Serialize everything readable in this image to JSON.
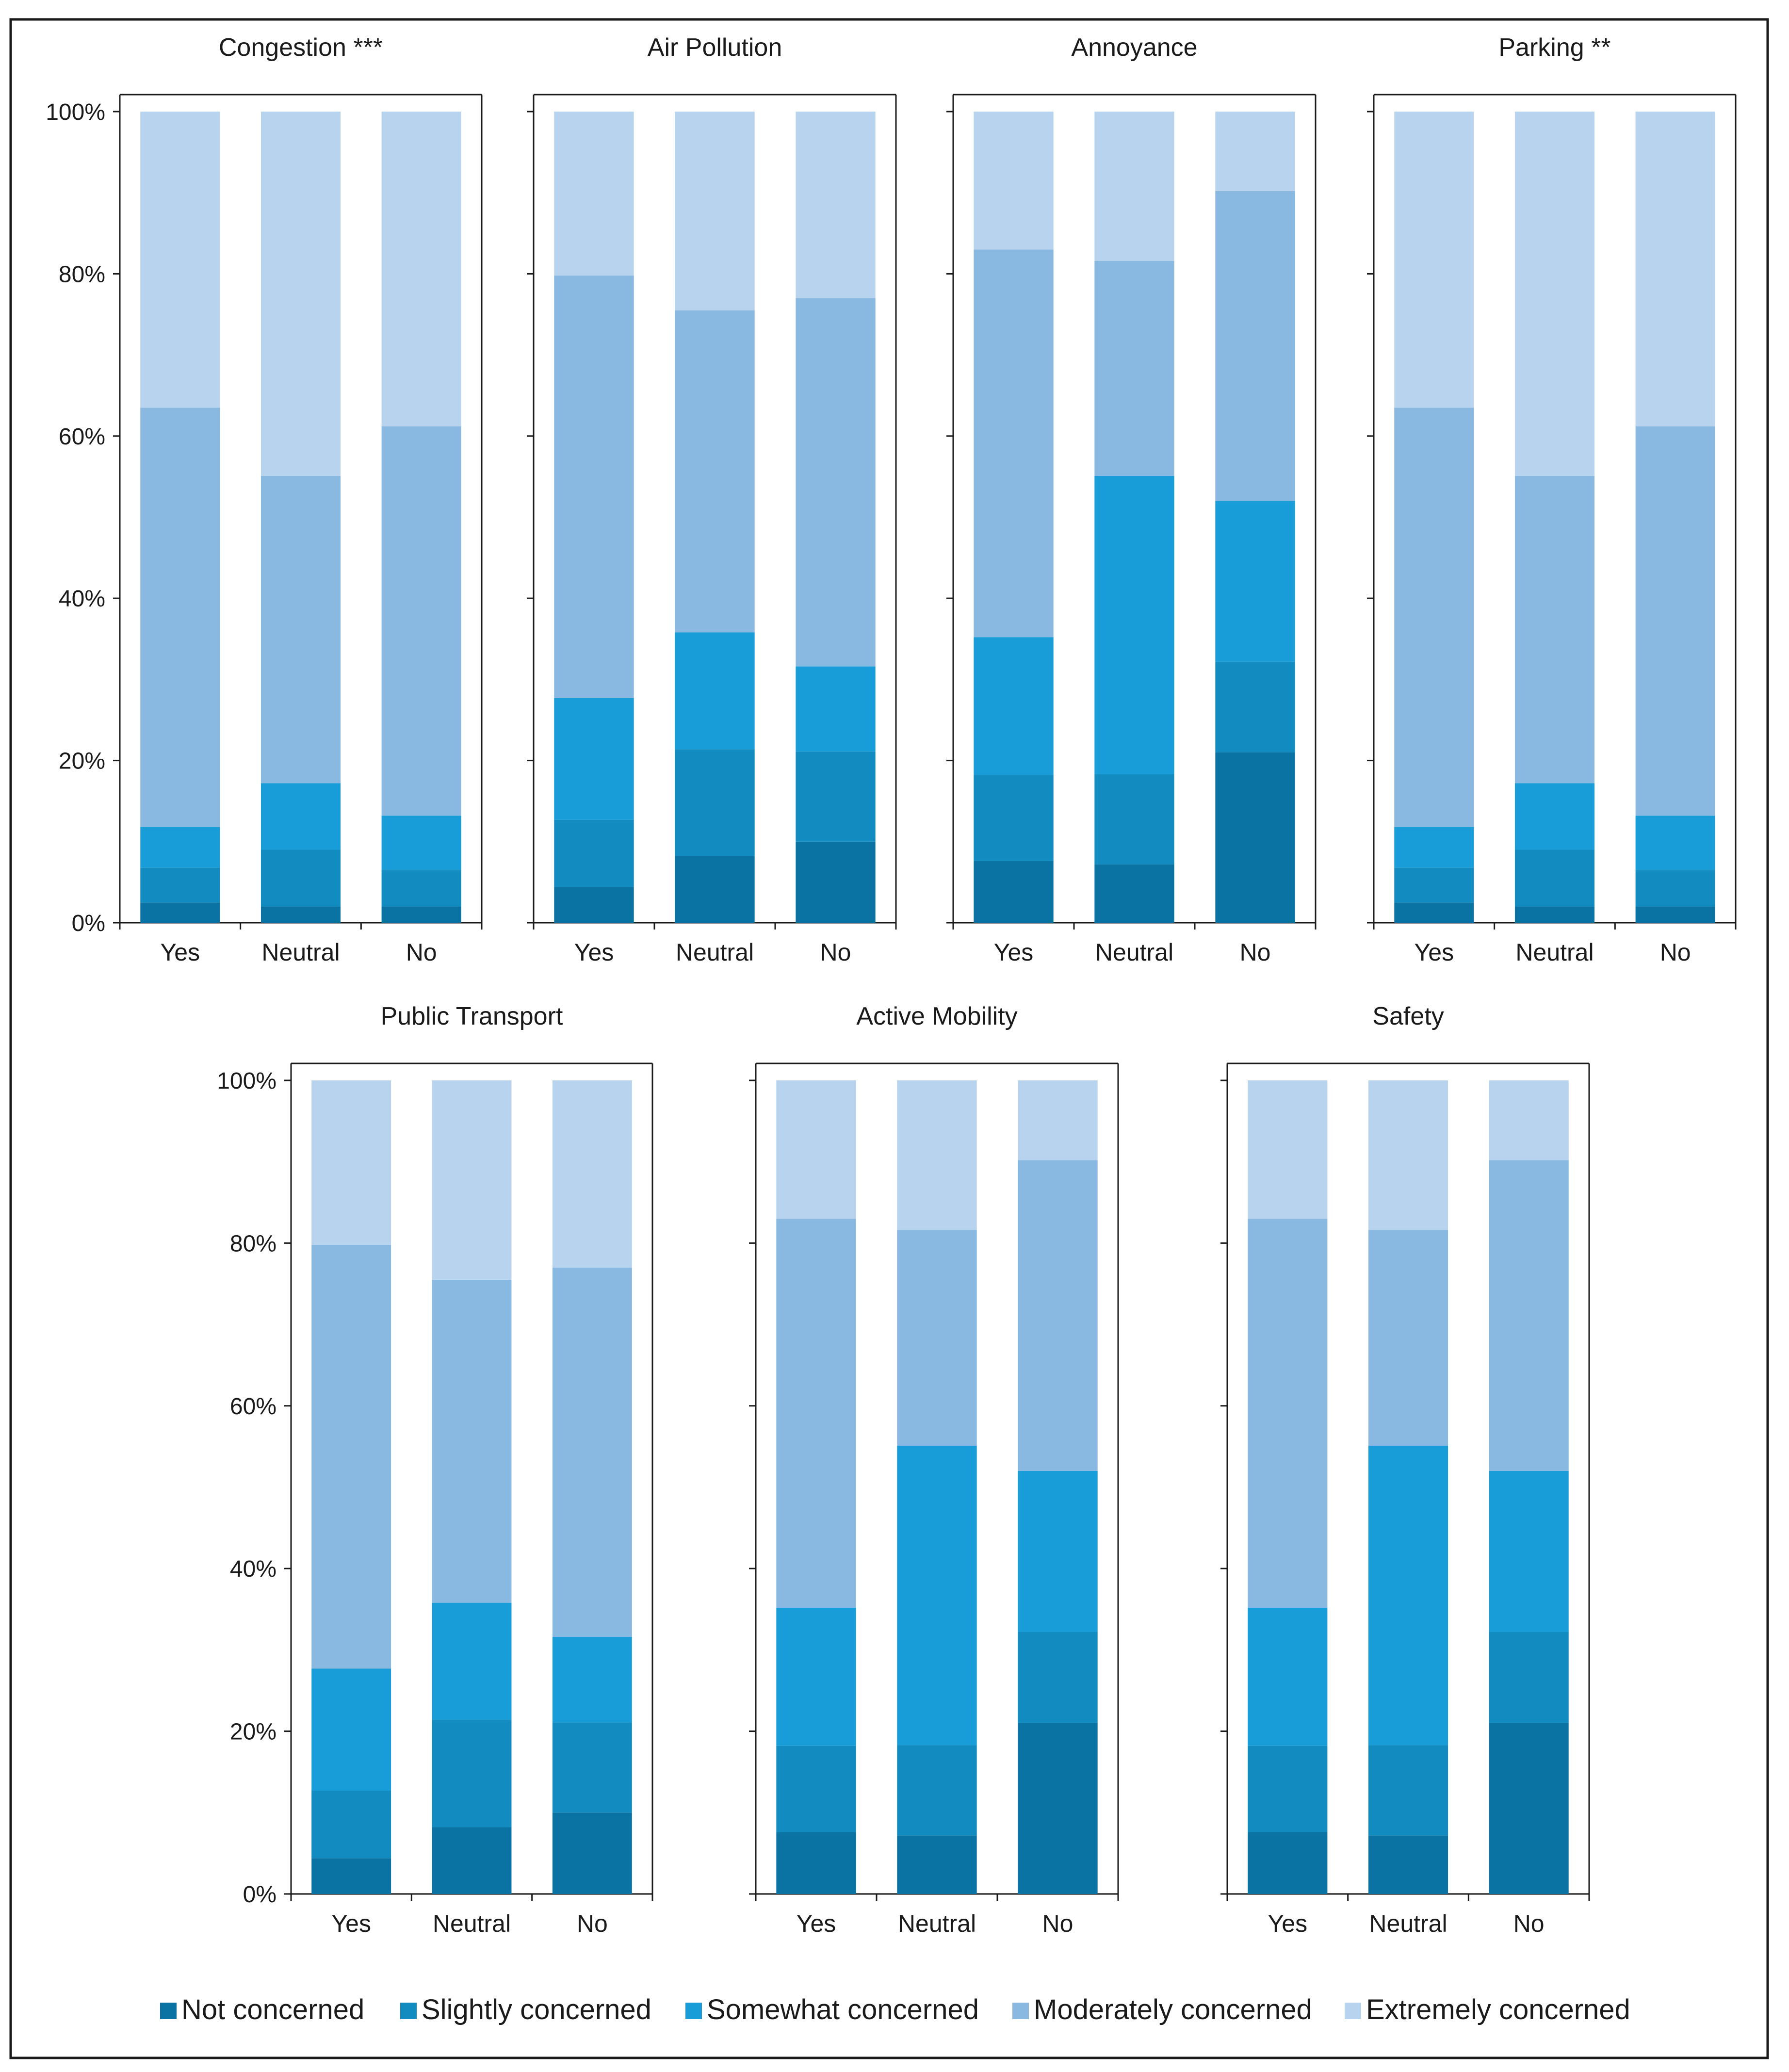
{
  "colors": {
    "not_concerned": "#0b73a3",
    "slightly_concerned": "#128bc0",
    "somewhat_concerned": "#189dd8",
    "moderately_concerned": "#89b9e0",
    "extremely_concerned": "#b8d3ed"
  },
  "legend": {
    "items": [
      {
        "label": "Not concerned",
        "color": "#0b73a3"
      },
      {
        "label": "Slightly concerned",
        "color": "#128bc0"
      },
      {
        "label": "Somewhat concerned",
        "color": "#189dd8"
      },
      {
        "label": "Moderately concerned",
        "color": "#89b9e0"
      },
      {
        "label": "Extremely concerned",
        "color": "#b8d3ed"
      }
    ]
  },
  "chart_data": [
    {
      "type": "bar",
      "stacked": true,
      "title": "Congestion ***",
      "categories": [
        "Yes",
        "Neutral",
        "No"
      ],
      "ylim": [
        0,
        100
      ],
      "yticks": [
        "0%",
        "20%",
        "40%",
        "60%",
        "80%",
        "100%"
      ],
      "series": [
        {
          "name": "Not concerned",
          "values": [
            2.5,
            2,
            2
          ]
        },
        {
          "name": "Slightly concerned",
          "values": [
            4.3,
            7,
            4.5
          ]
        },
        {
          "name": "Somewhat concerned",
          "values": [
            5,
            8.2,
            6.7
          ]
        },
        {
          "name": "Moderately concerned",
          "values": [
            51.7,
            37.9,
            48
          ]
        },
        {
          "name": "Extremely concerned",
          "values": [
            36.5,
            44.9,
            38.8
          ]
        }
      ]
    },
    {
      "type": "bar",
      "stacked": true,
      "title": "Air Pollution",
      "categories": [
        "Yes",
        "Neutral",
        "No"
      ],
      "ylim": [
        0,
        100
      ],
      "yticks": [
        "0%",
        "20%",
        "40%",
        "60%",
        "80%",
        "100%"
      ],
      "series": [
        {
          "name": "Not concerned",
          "values": [
            4.4,
            8.2,
            10
          ]
        },
        {
          "name": "Slightly concerned",
          "values": [
            8.3,
            13.2,
            11.1
          ]
        },
        {
          "name": "Somewhat concerned",
          "values": [
            15,
            14.4,
            10.5
          ]
        },
        {
          "name": "Moderately concerned",
          "values": [
            52.1,
            39.7,
            45.4
          ]
        },
        {
          "name": "Extremely concerned",
          "values": [
            20.2,
            24.5,
            23
          ]
        }
      ]
    },
    {
      "type": "bar",
      "stacked": true,
      "title": "Annoyance",
      "categories": [
        "Yes",
        "Neutral",
        "No"
      ],
      "ylim": [
        0,
        100
      ],
      "yticks": [
        "0%",
        "20%",
        "40%",
        "60%",
        "80%",
        "100%"
      ],
      "series": [
        {
          "name": "Not concerned",
          "values": [
            7.6,
            7.2,
            21
          ]
        },
        {
          "name": "Slightly concerned",
          "values": [
            10.6,
            11.1,
            11.2
          ]
        },
        {
          "name": "Somewhat concerned",
          "values": [
            17,
            36.8,
            19.8
          ]
        },
        {
          "name": "Moderately concerned",
          "values": [
            47.8,
            26.5,
            38.2
          ]
        },
        {
          "name": "Extremely concerned",
          "values": [
            17,
            18.4,
            9.8
          ]
        }
      ]
    },
    {
      "type": "bar",
      "stacked": true,
      "title": "Parking **",
      "categories": [
        "Yes",
        "Neutral",
        "No"
      ],
      "ylim": [
        0,
        100
      ],
      "yticks": [
        "0%",
        "20%",
        "40%",
        "60%",
        "80%",
        "100%"
      ],
      "series": [
        {
          "name": "Not concerned",
          "values": [
            2.5,
            2,
            2
          ]
        },
        {
          "name": "Slightly concerned",
          "values": [
            4.3,
            7,
            4.5
          ]
        },
        {
          "name": "Somewhat concerned",
          "values": [
            5,
            8.2,
            6.7
          ]
        },
        {
          "name": "Moderately concerned",
          "values": [
            51.7,
            37.9,
            48
          ]
        },
        {
          "name": "Extremely concerned",
          "values": [
            36.5,
            44.9,
            38.8
          ]
        }
      ]
    },
    {
      "type": "bar",
      "stacked": true,
      "title": "Public Transport",
      "categories": [
        "Yes",
        "Neutral",
        "No"
      ],
      "ylim": [
        0,
        100
      ],
      "yticks": [
        "0%",
        "20%",
        "40%",
        "60%",
        "80%",
        "100%"
      ],
      "series": [
        {
          "name": "Not concerned",
          "values": [
            4.4,
            8.2,
            10
          ]
        },
        {
          "name": "Slightly concerned",
          "values": [
            8.3,
            13.2,
            11.1
          ]
        },
        {
          "name": "Somewhat concerned",
          "values": [
            15,
            14.4,
            10.5
          ]
        },
        {
          "name": "Moderately concerned",
          "values": [
            52.1,
            39.7,
            45.4
          ]
        },
        {
          "name": "Extremely concerned",
          "values": [
            20.2,
            24.5,
            23
          ]
        }
      ]
    },
    {
      "type": "bar",
      "stacked": true,
      "title": "Active Mobility",
      "categories": [
        "Yes",
        "Neutral",
        "No"
      ],
      "ylim": [
        0,
        100
      ],
      "yticks": [
        "0%",
        "20%",
        "40%",
        "60%",
        "80%",
        "100%"
      ],
      "series": [
        {
          "name": "Not concerned",
          "values": [
            7.6,
            7.2,
            21
          ]
        },
        {
          "name": "Slightly concerned",
          "values": [
            10.6,
            11.1,
            11.2
          ]
        },
        {
          "name": "Somewhat concerned",
          "values": [
            17,
            36.8,
            19.8
          ]
        },
        {
          "name": "Moderately concerned",
          "values": [
            47.8,
            26.5,
            38.2
          ]
        },
        {
          "name": "Extremely concerned",
          "values": [
            17,
            18.4,
            9.8
          ]
        }
      ]
    },
    {
      "type": "bar",
      "stacked": true,
      "title": "Safety",
      "categories": [
        "Yes",
        "Neutral",
        "No"
      ],
      "ylim": [
        0,
        100
      ],
      "yticks": [
        "0%",
        "20%",
        "40%",
        "60%",
        "80%",
        "100%"
      ],
      "series": [
        {
          "name": "Not concerned",
          "values": [
            7.6,
            7.2,
            21
          ]
        },
        {
          "name": "Slightly concerned",
          "values": [
            10.6,
            11.1,
            11.2
          ]
        },
        {
          "name": "Somewhat concerned",
          "values": [
            17,
            36.8,
            19.8
          ]
        },
        {
          "name": "Moderately concerned",
          "values": [
            47.8,
            26.5,
            38.2
          ]
        },
        {
          "name": "Extremely concerned",
          "values": [
            17,
            18.4,
            9.8
          ]
        }
      ]
    }
  ]
}
